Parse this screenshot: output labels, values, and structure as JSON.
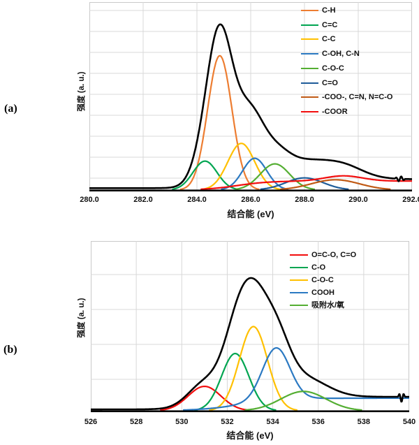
{
  "figure": {
    "background": "#ffffff",
    "panels": [
      {
        "id": "a",
        "label": "(a)"
      },
      {
        "id": "b",
        "label": "(b)"
      }
    ]
  },
  "chart_data": [
    {
      "panel": "a",
      "type": "line",
      "xlabel": "结合能 (eV)",
      "ylabel": "强度 (a. u.)",
      "xlim": [
        280,
        292
      ],
      "x_ticks": [
        280,
        282,
        284,
        286,
        288,
        290,
        292
      ],
      "x_tick_labels": [
        "280.0",
        "282.0",
        "284.0",
        "286.0",
        "288.0",
        "290.0",
        "292.0"
      ],
      "grid": true,
      "legend_position": "top-right",
      "envelope": {
        "color": "#000000",
        "baseline": 0.01,
        "squiggle": {
          "start": 291.35,
          "length": 0.4,
          "cycles": 2,
          "amp": 0.014
        }
      },
      "series": [
        {
          "name": "C-H",
          "color": "#ED7D31",
          "peaks": [
            {
              "center": 284.85,
              "sigma": 0.45,
              "amp": 0.72
            }
          ]
        },
        {
          "name": "C=C",
          "color": "#00A551",
          "peaks": [
            {
              "center": 284.3,
              "sigma": 0.45,
              "amp": 0.155
            }
          ]
        },
        {
          "name": "C-C",
          "color": "#FFC000",
          "peaks": [
            {
              "center": 285.65,
              "sigma": 0.5,
              "amp": 0.25
            }
          ]
        },
        {
          "name": "C-OH, C-N",
          "color": "#2B79C2",
          "peaks": [
            {
              "center": 286.15,
              "sigma": 0.45,
              "amp": 0.17
            }
          ]
        },
        {
          "name": "C-O-C",
          "color": "#54AE32",
          "peaks": [
            {
              "center": 286.9,
              "sigma": 0.55,
              "amp": 0.14
            }
          ]
        },
        {
          "name": "C=O",
          "color": "#1E5C99",
          "peaks": [
            {
              "center": 288.0,
              "sigma": 0.7,
              "amp": 0.065
            }
          ]
        },
        {
          "name": "-COO-, C=N, N=C-O",
          "color": "#C05A15",
          "peaks": [
            {
              "center": 289.15,
              "sigma": 0.9,
              "amp": 0.055
            }
          ]
        },
        {
          "name": "-COOR",
          "color": "#F20D0D",
          "peaks": [
            {
              "center": 289.45,
              "sigma": 0.7,
              "amp": 0.028
            }
          ],
          "background": {
            "type": "sigmoid",
            "center": 285.5,
            "k": 1.7,
            "amp": 0.048
          }
        }
      ]
    },
    {
      "panel": "b",
      "type": "line",
      "xlabel": "结合能 (eV)",
      "ylabel": "强度 (a. u.)",
      "xlim": [
        526,
        540
      ],
      "x_ticks": [
        526,
        528,
        530,
        532,
        534,
        536,
        538,
        540
      ],
      "x_tick_labels": [
        "526",
        "528",
        "530",
        "532",
        "534",
        "536",
        "538",
        "540"
      ],
      "grid": true,
      "legend_position": "top-right",
      "envelope": {
        "color": "#000000",
        "baseline": 0.008,
        "squiggle": {
          "start": 539.5,
          "length": 0.32,
          "cycles": 1.5,
          "amp": 0.03
        }
      },
      "series": [
        {
          "name": "O=C-O, C=O",
          "color": "#F20D0D",
          "peaks": [
            {
              "center": 531.0,
              "sigma": 0.72,
              "amp": 0.145
            }
          ]
        },
        {
          "name": "C-O",
          "color": "#00A551",
          "peaks": [
            {
              "center": 532.35,
              "sigma": 0.6,
              "amp": 0.34
            }
          ]
        },
        {
          "name": "C-O-C",
          "color": "#FFC000",
          "peaks": [
            {
              "center": 533.15,
              "sigma": 0.62,
              "amp": 0.5
            }
          ]
        },
        {
          "name": "COOH",
          "color": "#2B79C2",
          "peaks": [
            {
              "center": 534.15,
              "sigma": 0.6,
              "amp": 0.31
            }
          ],
          "background": {
            "type": "sigmoid",
            "center": 532.6,
            "k": 1.1,
            "amp": 0.075
          }
        },
        {
          "name": "吸附水/氧",
          "color": "#54AE32",
          "peaks": [
            {
              "center": 535.35,
              "sigma": 1.0,
              "amp": 0.115
            }
          ]
        }
      ]
    }
  ]
}
